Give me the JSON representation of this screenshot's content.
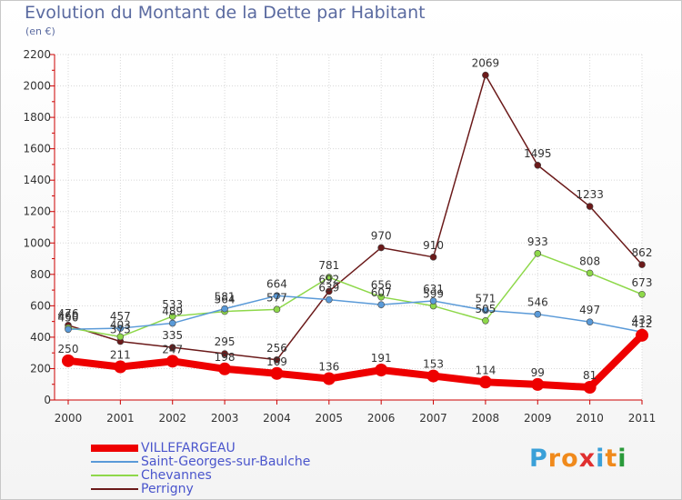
{
  "header": {
    "title": "Evolution du Montant de la Dette par Habitant",
    "subtitle": "(en €)"
  },
  "logo": {
    "text": "Proxiti",
    "letters": [
      "P",
      "r",
      "o",
      "x",
      "i",
      "t",
      "i"
    ],
    "colors": [
      "#3aa0d8",
      "#f08a1c",
      "#f08a1c",
      "#e03030",
      "#3aa0d8",
      "#f08a1c",
      "#2a9a3a"
    ]
  },
  "chart_data": {
    "type": "line",
    "title": "Evolution du Montant de la Dette par Habitant",
    "subtitle": "(en €)",
    "xlabel": "",
    "ylabel": "",
    "x": [
      "2000",
      "2001",
      "2002",
      "2003",
      "2004",
      "2005",
      "2006",
      "2007",
      "2008",
      "2009",
      "2010",
      "2011"
    ],
    "ylim": [
      0,
      2200
    ],
    "yticks": [
      0,
      200,
      400,
      600,
      800,
      1000,
      1200,
      1400,
      1600,
      1800,
      2000,
      2200
    ],
    "grid": true,
    "legend": "bottom-left",
    "series": [
      {
        "name": "Perrigny",
        "color": "#6b1a1a",
        "values": [
          476,
          373,
          335,
          295,
          256,
          692,
          970,
          910,
          2069,
          1495,
          1233,
          862
        ]
      },
      {
        "name": "Chevannes",
        "color": "#8ed84a",
        "values": [
          460,
          403,
          533,
          564,
          577,
          781,
          656,
          599,
          505,
          933,
          808,
          673
        ]
      },
      {
        "name": "Saint-Georges-sur-Baulche",
        "color": "#5a9ad8",
        "values": [
          450,
          457,
          489,
          581,
          664,
          639,
          607,
          631,
          571,
          546,
          497,
          433
        ]
      },
      {
        "name": "VILLEFARGEAU",
        "color": "#ee0000",
        "values": [
          250,
          211,
          247,
          198,
          169,
          136,
          191,
          153,
          114,
          99,
          81,
          412
        ]
      }
    ]
  }
}
